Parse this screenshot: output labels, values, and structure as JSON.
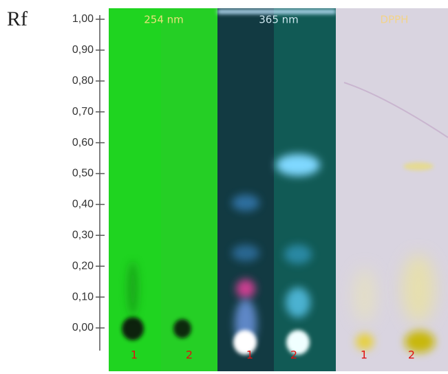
{
  "axis": {
    "label": "Rf",
    "ticks": [
      {
        "value": 1,
        "label": "1,00"
      },
      {
        "value": 0.9,
        "label": "0,90"
      },
      {
        "value": 0.8,
        "label": "0,80"
      },
      {
        "value": 0.7,
        "label": "0,70"
      },
      {
        "value": 0.6,
        "label": "0,60"
      },
      {
        "value": 0.5,
        "label": "0,50"
      },
      {
        "value": 0.4,
        "label": "0,40"
      },
      {
        "value": 0.3,
        "label": "0,30"
      },
      {
        "value": 0.2,
        "label": "0,20"
      },
      {
        "value": 0.1,
        "label": "0,10"
      },
      {
        "value": 0,
        "label": "0,00"
      }
    ]
  },
  "panels": [
    {
      "title": "254 nm",
      "lanes": [
        "1",
        "2"
      ]
    },
    {
      "title": "365 nm",
      "lanes": [
        "1",
        "2"
      ]
    },
    {
      "title": "DPPH",
      "lanes": [
        "1",
        "2"
      ]
    }
  ]
}
